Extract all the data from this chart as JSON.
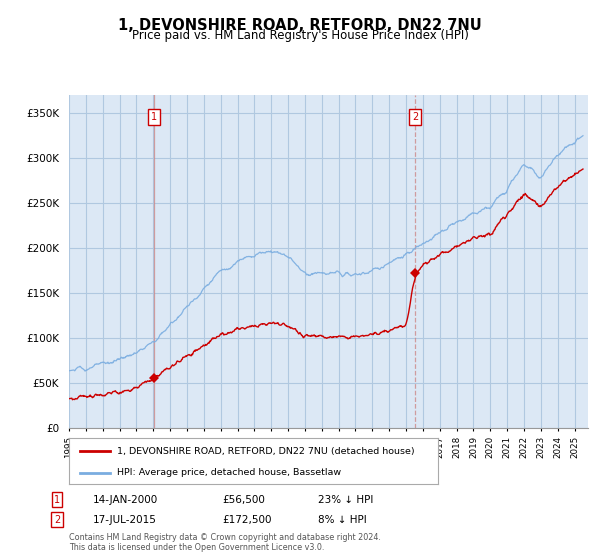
{
  "title": "1, DEVONSHIRE ROAD, RETFORD, DN22 7NU",
  "subtitle": "Price paid vs. HM Land Registry's House Price Index (HPI)",
  "ylabel_ticks": [
    "£0",
    "£50K",
    "£100K",
    "£150K",
    "£200K",
    "£250K",
    "£300K",
    "£350K"
  ],
  "ytick_vals": [
    0,
    50000,
    100000,
    150000,
    200000,
    250000,
    300000,
    350000
  ],
  "ylim": [
    0,
    370000
  ],
  "xlim_start": 1995.0,
  "xlim_end": 2025.8,
  "t1_x": 2000.04,
  "t1_price": 56500,
  "t1_label": "1",
  "t1_date_str": "14-JAN-2000",
  "t1_pct": "23% ↓ HPI",
  "t2_x": 2015.54,
  "t2_price": 172500,
  "t2_label": "2",
  "t2_date_str": "17-JUL-2015",
  "t2_pct": "8% ↓ HPI",
  "legend_line1": "1, DEVONSHIRE ROAD, RETFORD, DN22 7NU (detached house)",
  "legend_line2": "HPI: Average price, detached house, Bassetlaw",
  "footer1": "Contains HM Land Registry data © Crown copyright and database right 2024.",
  "footer2": "This data is licensed under the Open Government Licence v3.0.",
  "line_color_red": "#cc0000",
  "line_color_blue": "#7aade0",
  "vline1_color": "#cc8888",
  "vline2_color": "#cc8888",
  "plot_bg_color": "#dce8f5",
  "background_color": "#ffffff",
  "grid_color": "#b0c8e0",
  "title_fontsize": 10.5,
  "subtitle_fontsize": 8.5,
  "tick_fontsize": 7.5,
  "blue_anchors_x": [
    1995,
    1996,
    1997,
    1998,
    1999,
    2000,
    2001,
    2002,
    2003,
    2004,
    2005,
    2006,
    2007,
    2008,
    2009,
    2010,
    2011,
    2012,
    2013,
    2014,
    2015,
    2016,
    2017,
    2018,
    2019,
    2020,
    2021,
    2022,
    2023,
    2024,
    2025.5
  ],
  "blue_anchors_y": [
    64000,
    67000,
    71000,
    77000,
    84000,
    95000,
    115000,
    135000,
    155000,
    175000,
    185000,
    193000,
    198000,
    192000,
    172000,
    172000,
    172000,
    170000,
    175000,
    183000,
    192000,
    205000,
    218000,
    228000,
    238000,
    245000,
    268000,
    295000,
    278000,
    305000,
    325000
  ],
  "red_anchors_x": [
    1995,
    1996,
    1997,
    1998,
    1999,
    2000,
    2000.1,
    2001,
    2002,
    2003,
    2004,
    2005,
    2006,
    2007,
    2008,
    2009,
    2010,
    2011,
    2012,
    2013,
    2014,
    2015,
    2015.55,
    2016,
    2017,
    2018,
    2019,
    2020,
    2021,
    2022,
    2023,
    2024,
    2025.5
  ],
  "red_anchors_y": [
    33000,
    36000,
    38000,
    41000,
    45000,
    56500,
    56500,
    68000,
    80000,
    92000,
    104000,
    110000,
    114000,
    117000,
    114000,
    102000,
    102000,
    102000,
    101000,
    104000,
    108000,
    114000,
    172500,
    182000,
    193000,
    202000,
    211000,
    217000,
    238000,
    261000,
    247000,
    270000,
    288000
  ]
}
